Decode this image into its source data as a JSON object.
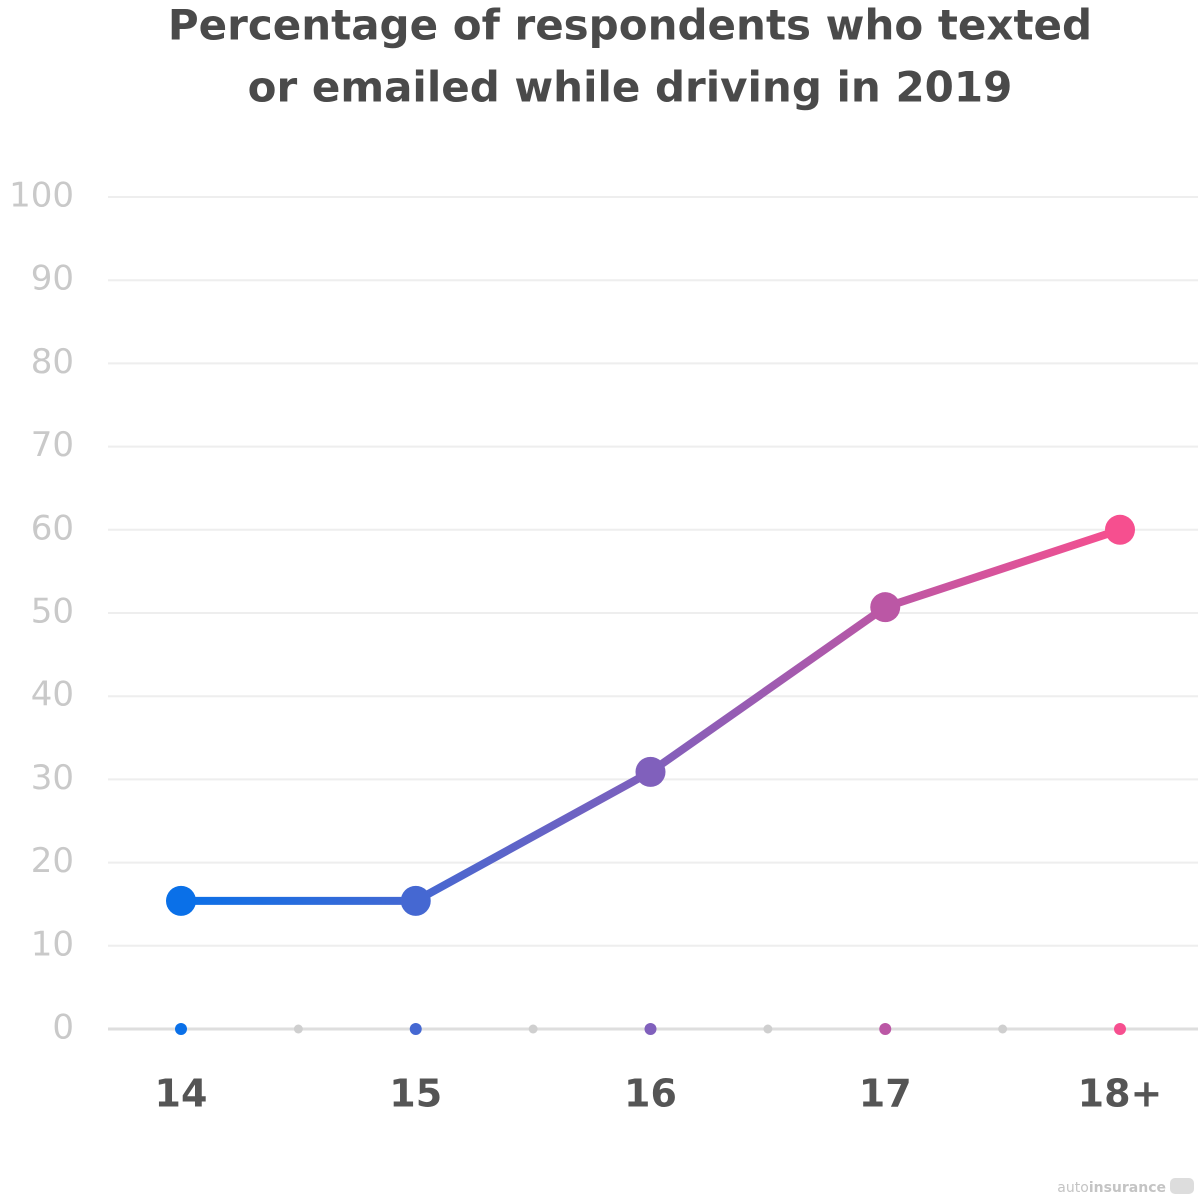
{
  "chart_data": {
    "type": "line",
    "title": [
      "Percentage of respondents who texted",
      "or emailed while driving in 2019"
    ],
    "categories": [
      "14",
      "15",
      "16",
      "17",
      "18+"
    ],
    "values": [
      15.4,
      15.4,
      30.9,
      50.7,
      60
    ],
    "gradient": [
      "#0a70e8",
      "#f64f8f"
    ],
    "ylim": [
      0,
      100
    ],
    "yticks": [
      0,
      10,
      20,
      30,
      40,
      50,
      60,
      70,
      80,
      90,
      100
    ],
    "grid": true,
    "watermark": {
      "light": "auto",
      "bold": "insurance"
    }
  }
}
